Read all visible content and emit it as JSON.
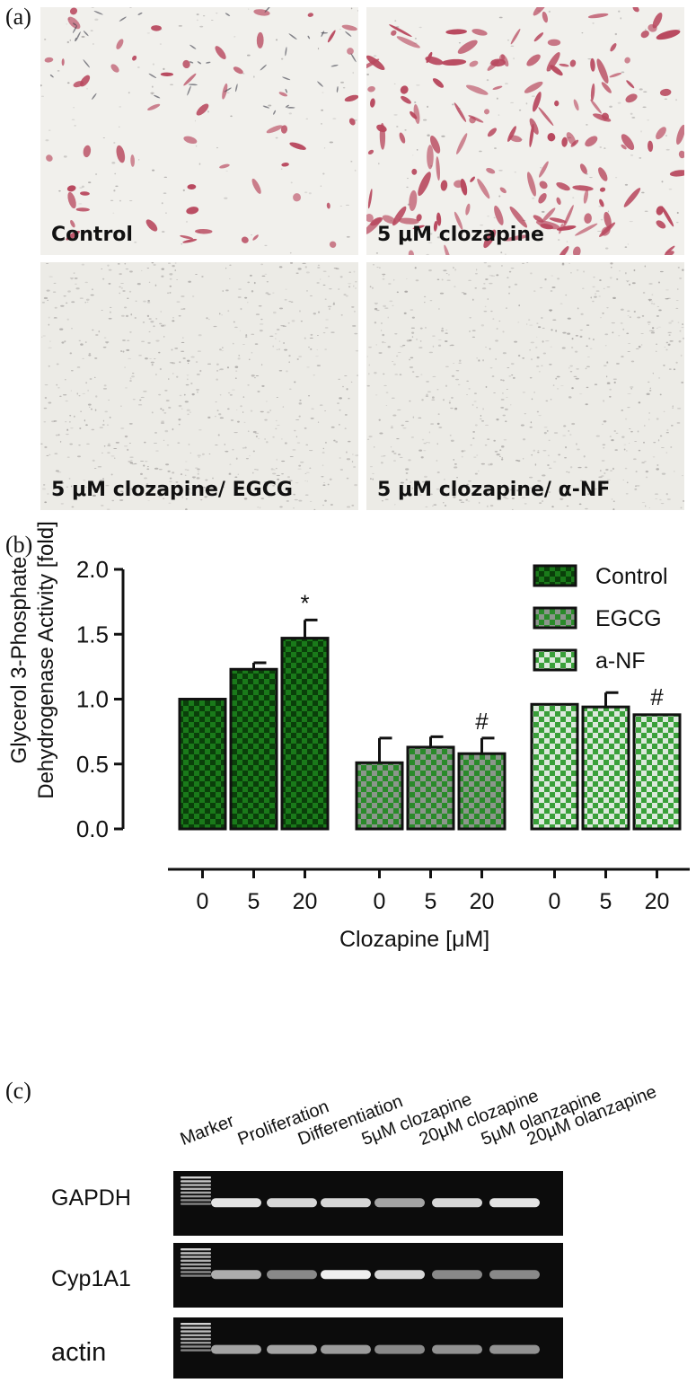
{
  "figure": {
    "panel_a_label": "(a)",
    "panel_b_label": "(b)",
    "panel_c_label": "(c)"
  },
  "micrographs": [
    {
      "label": "Control",
      "stain": "#b8485e",
      "stain_level": "low"
    },
    {
      "label": "5 μM clozapine",
      "stain": "#b8485e",
      "stain_level": "high"
    },
    {
      "label": "5 μM clozapine/ EGCG",
      "stain": "#7a7070",
      "stain_level": "none"
    },
    {
      "label": "5 μM clozapine/ α-NF",
      "stain": "#7a7070",
      "stain_level": "none"
    }
  ],
  "chart_data": {
    "type": "bar",
    "title": "",
    "ylabel_line1": "Glycerol 3-Phosphate",
    "ylabel_line2": "Dehydrogenase Activity [fold]",
    "xlabel": "Clozapine [μM]",
    "ylim": [
      0,
      2.0
    ],
    "yticks": [
      "0.0",
      "0.5",
      "1.0",
      "1.5",
      "2.0"
    ],
    "ytick_values": [
      0,
      0.5,
      1.0,
      1.5,
      2.0
    ],
    "legend_position": "top-right",
    "groups": [
      {
        "name": "Control",
        "color": "#1a6e1a",
        "check": "#0f4a0f",
        "categories": [
          "0",
          "5",
          "20"
        ],
        "values": [
          1.0,
          1.23,
          1.47
        ],
        "errors": [
          0,
          0.05,
          0.14
        ],
        "annotations": [
          "",
          "",
          "*"
        ]
      },
      {
        "name": "EGCG",
        "color": "#2e8b2e",
        "check": "#8a9a8a",
        "categories": [
          "0",
          "5",
          "20"
        ],
        "values": [
          0.51,
          0.63,
          0.58
        ],
        "errors": [
          0.19,
          0.08,
          0.12
        ],
        "annotations": [
          "",
          "",
          "#"
        ]
      },
      {
        "name": "a-NF",
        "color": "#3a9c3a",
        "check": "#d8e8d8",
        "categories": [
          "0",
          "5",
          "20"
        ],
        "values": [
          0.96,
          0.94,
          0.88
        ],
        "errors": [
          0.01,
          0.11,
          0.005
        ],
        "annotations": [
          "",
          "",
          "#"
        ]
      }
    ]
  },
  "gel": {
    "lane_headers": [
      "Marker",
      "Proliferation",
      "Differentiation",
      "5μM clozapine",
      "20μM clozapine",
      "5μM olanzapine",
      "20μM olanzapine"
    ],
    "rows": [
      {
        "label": "GAPDH",
        "intensities": [
          0.9,
          0.85,
          0.85,
          0.6,
          0.85,
          0.9
        ]
      },
      {
        "label": "Cyp1A1",
        "intensities": [
          0.65,
          0.45,
          0.95,
          0.85,
          0.45,
          0.45
        ]
      },
      {
        "label": "actin",
        "intensities": [
          0.6,
          0.6,
          0.55,
          0.45,
          0.5,
          0.5
        ]
      }
    ]
  }
}
